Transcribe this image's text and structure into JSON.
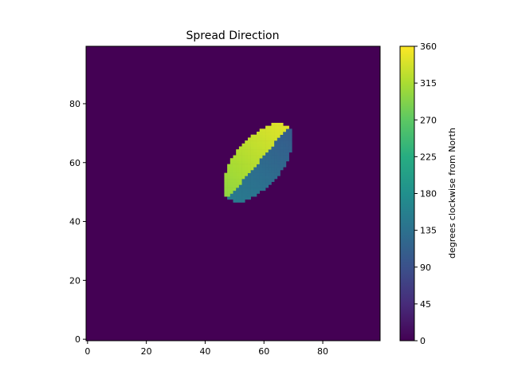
{
  "chart_data": {
    "type": "heatmap",
    "title": "Spread Direction",
    "xlabel": "",
    "ylabel": "",
    "xlim": [
      -0.5,
      99.5
    ],
    "ylim": [
      -0.5,
      99.5
    ],
    "x_ticks": [
      0,
      20,
      40,
      60,
      80
    ],
    "y_ticks": [
      0,
      20,
      40,
      60,
      80
    ],
    "grid": false,
    "colormap": "viridis",
    "background_value": 0,
    "colorbar": {
      "label": "degrees clockwise from North",
      "min": 0,
      "max": 360,
      "ticks": [
        0,
        45,
        90,
        135,
        180,
        225,
        270,
        315,
        360
      ]
    },
    "burned_region": {
      "description_values": "ellipse-shaped fire front; north-west half ≈ 300–345°, south-east half ≈ 110–150°",
      "center": [
        58,
        60
      ],
      "semi_major": 16,
      "semi_minor": 8,
      "orientation_deg": 50,
      "northwest_values": [
        300,
        345
      ],
      "southeast_values": [
        105,
        150
      ]
    }
  }
}
